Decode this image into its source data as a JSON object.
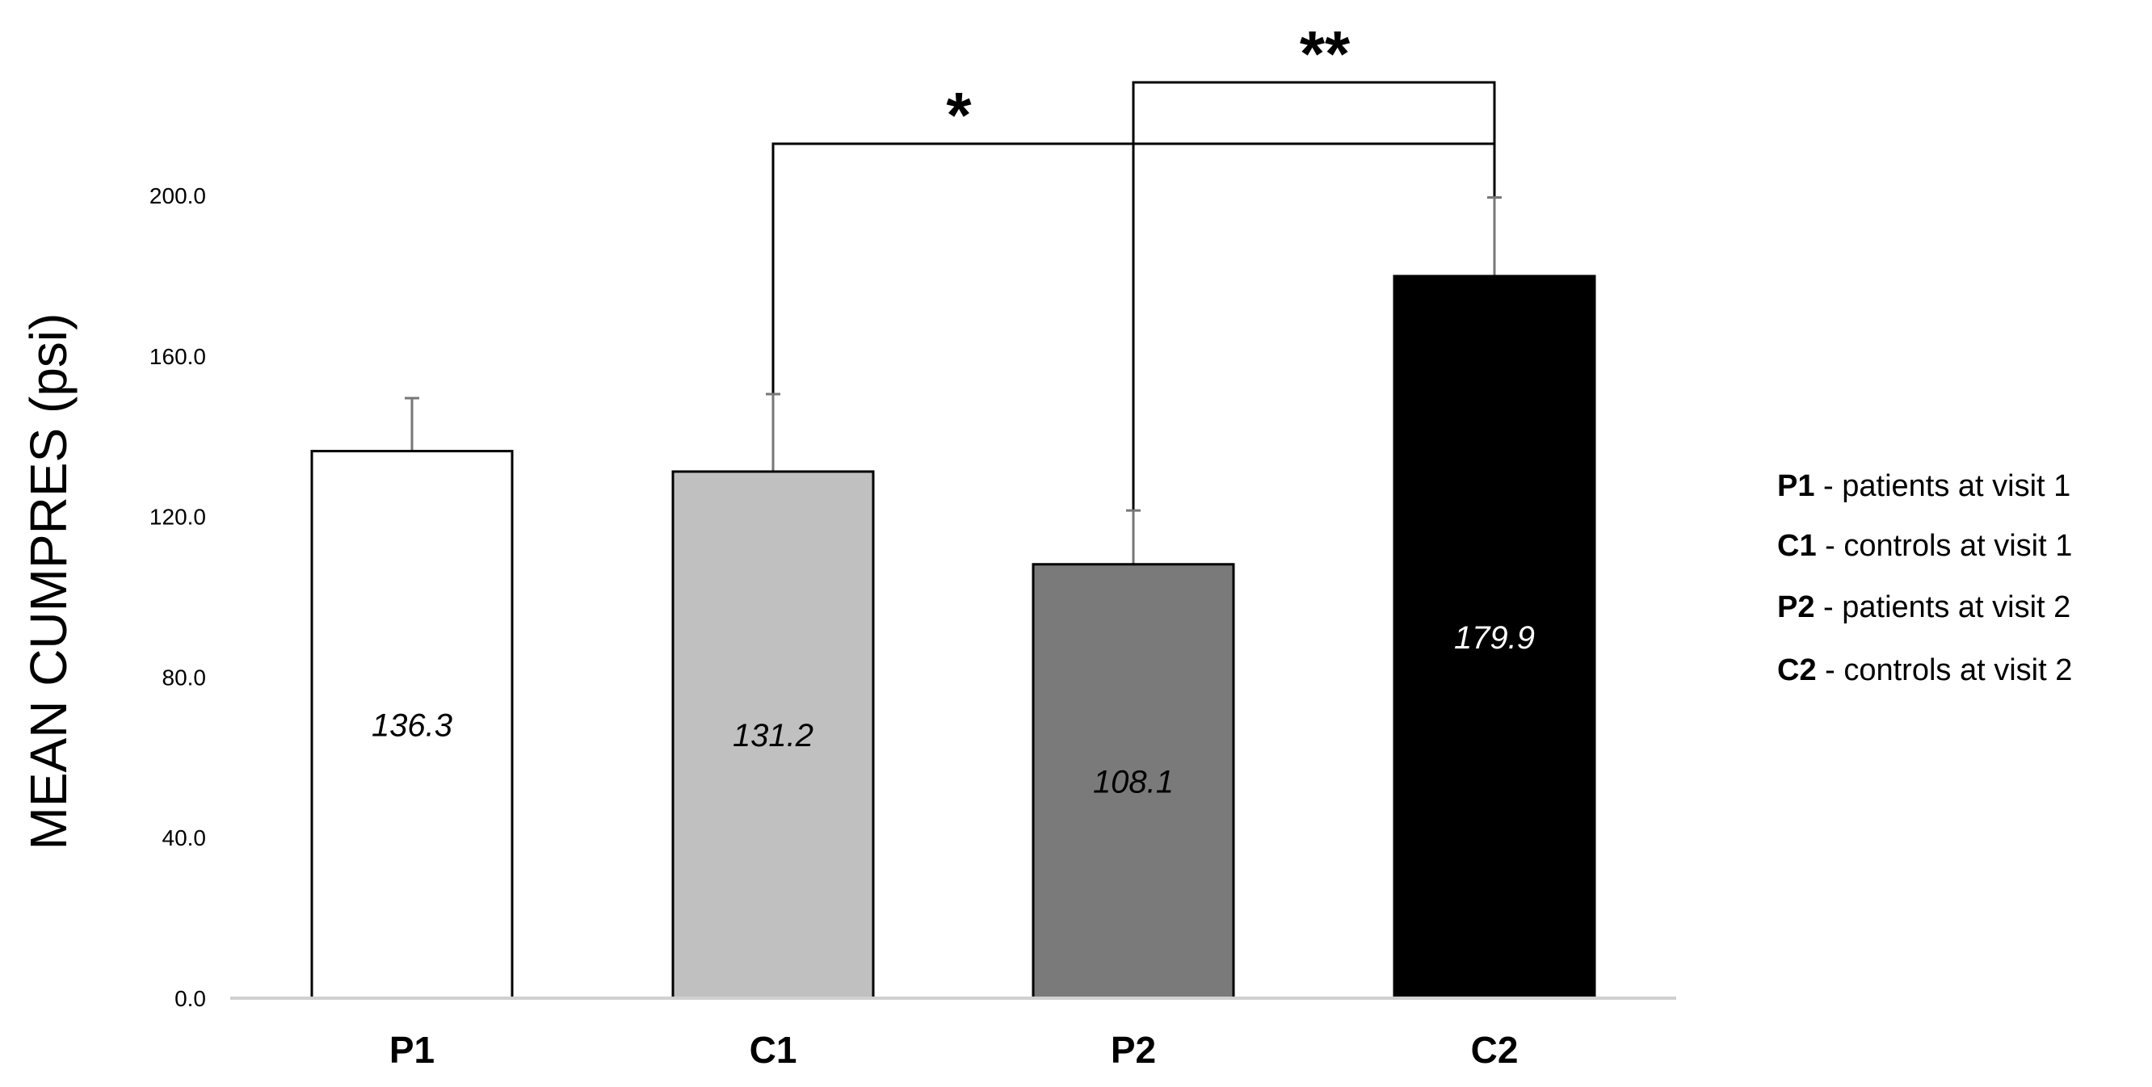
{
  "chart_data": {
    "type": "bar",
    "ylabel": "MEAN CUMPRES (psi)",
    "ylim": [
      0,
      200
    ],
    "yticks": [
      "0.0",
      "40.0",
      "80.0",
      "120.0",
      "160.0",
      "200.0"
    ],
    "categories": [
      "P1",
      "C1",
      "P2",
      "C2"
    ],
    "values": [
      136.3,
      131.2,
      108.1,
      179.9
    ],
    "value_labels": [
      "136.3",
      "131.2",
      "108.1",
      "179.9"
    ],
    "error_upper": [
      149.5,
      150.5,
      121.5,
      199.5
    ],
    "bar_colors": [
      "#ffffff",
      "#c0c0c0",
      "#7a7a7a",
      "#000000"
    ],
    "label_colors": [
      "#000000",
      "#000000",
      "#000000",
      "#ffffff"
    ],
    "grid": false,
    "significance": [
      {
        "from": "C1",
        "to": "C2",
        "label": "*"
      },
      {
        "from": "P2",
        "to": "C2",
        "label": "**"
      }
    ],
    "legend": {
      "placement": "right",
      "entries": [
        {
          "key": "P1",
          "text": " - patients at visit 1"
        },
        {
          "key": "C1",
          "text": " - controls at visit 1"
        },
        {
          "key": "P2",
          "text": " - patients at visit 2"
        },
        {
          "key": "C2",
          "text": " - controls at visit 2"
        }
      ]
    }
  }
}
